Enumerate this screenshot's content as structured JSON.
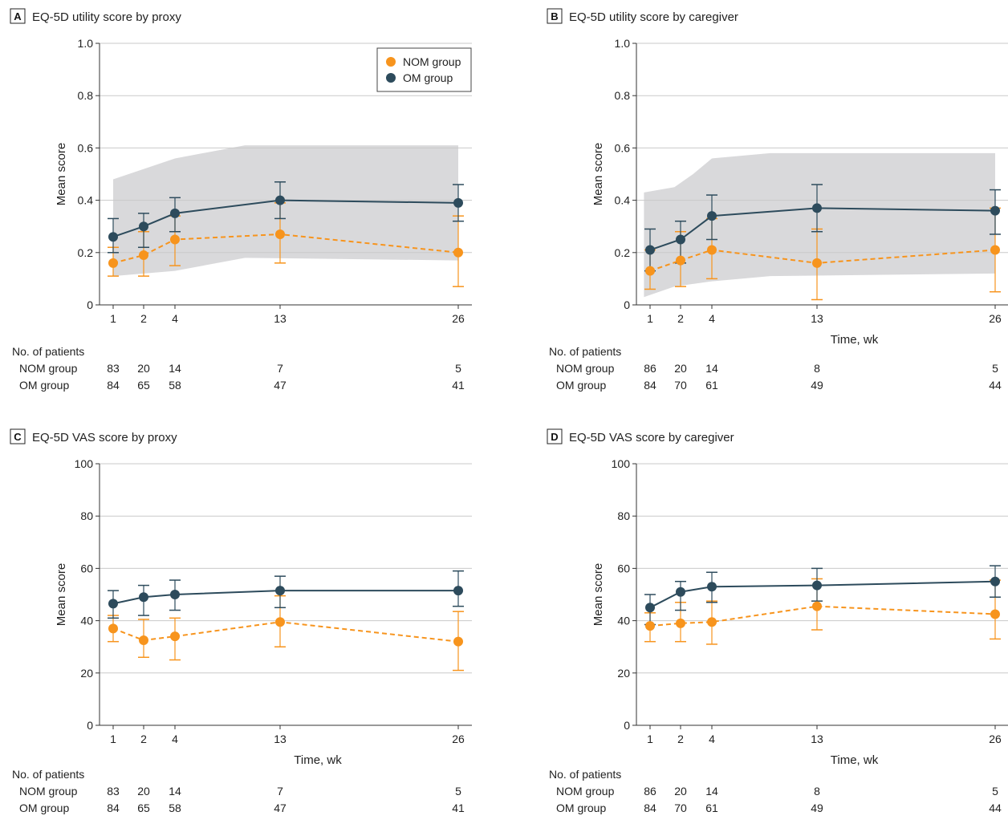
{
  "colors": {
    "nom": "#F7941D",
    "om": "#2D4B5C",
    "band": "#D9D9DB",
    "grid": "#C9C9C9",
    "axis": "#333333"
  },
  "number_of_patients_label": "No. of patients",
  "legend": {
    "nom_label": "NOM group",
    "om_label": "OM group"
  },
  "chart_data": [
    {
      "id": "A",
      "type": "line",
      "panel_letter": "A",
      "title": "EQ-5D utility score by proxy",
      "ylabel": "Mean score",
      "xlabel": "",
      "x": [
        1,
        2,
        4,
        13,
        26
      ],
      "xticks": [
        "1",
        "2",
        "4",
        "13",
        "26"
      ],
      "ylim": [
        0,
        1.0
      ],
      "yticks": [
        "0",
        "0.2",
        "0.4",
        "0.6",
        "0.8",
        "1.0"
      ],
      "yticks_values": [
        0,
        0.2,
        0.4,
        0.6,
        0.8,
        1.0
      ],
      "grid": true,
      "legend_position": "top-right",
      "band": {
        "x": [
          1,
          4,
          10,
          26
        ],
        "upper": [
          0.48,
          0.56,
          0.61,
          0.61
        ],
        "lower": [
          0.11,
          0.13,
          0.18,
          0.17
        ]
      },
      "series": [
        {
          "name": "NOM group",
          "key": "nom",
          "style": "dashed",
          "values": [
            0.16,
            0.19,
            0.25,
            0.27,
            0.2
          ],
          "lower": [
            0.11,
            0.11,
            0.15,
            0.16,
            0.07
          ],
          "upper": [
            0.22,
            0.28,
            0.34,
            0.39,
            0.34
          ]
        },
        {
          "name": "OM group",
          "key": "om",
          "style": "solid",
          "values": [
            0.26,
            0.3,
            0.35,
            0.4,
            0.39
          ],
          "lower": [
            0.2,
            0.22,
            0.28,
            0.33,
            0.32
          ],
          "upper": [
            0.33,
            0.35,
            0.41,
            0.47,
            0.46
          ]
        }
      ],
      "patients": {
        "nom_label": "NOM group",
        "om_label": "OM group",
        "nom": [
          "83",
          "20",
          "14",
          "7",
          "5"
        ],
        "om": [
          "84",
          "65",
          "58",
          "47",
          "41"
        ]
      }
    },
    {
      "id": "B",
      "type": "line",
      "panel_letter": "B",
      "title": "EQ-5D utility score by caregiver",
      "ylabel": "Mean score",
      "xlabel": "Time, wk",
      "x": [
        1,
        2,
        4,
        13,
        26
      ],
      "xticks": [
        "1",
        "2",
        "4",
        "13",
        "26"
      ],
      "ylim": [
        0,
        1.0
      ],
      "yticks": [
        "0",
        "0.2",
        "0.4",
        "0.6",
        "0.8",
        "1.0"
      ],
      "yticks_values": [
        0,
        0.2,
        0.4,
        0.6,
        0.8,
        1.0
      ],
      "grid": true,
      "band": {
        "x": [
          0.8,
          1.8,
          2.8,
          4,
          9,
          26
        ],
        "upper": [
          0.43,
          0.45,
          0.5,
          0.56,
          0.58,
          0.58
        ],
        "lower": [
          0.03,
          0.07,
          0.08,
          0.09,
          0.11,
          0.12
        ]
      },
      "series": [
        {
          "name": "NOM group",
          "key": "nom",
          "style": "dashed",
          "values": [
            0.13,
            0.17,
            0.21,
            0.16,
            0.21
          ],
          "lower": [
            0.06,
            0.07,
            0.1,
            0.02,
            0.05
          ],
          "upper": [
            0.21,
            0.28,
            0.33,
            0.29,
            0.37
          ]
        },
        {
          "name": "OM group",
          "key": "om",
          "style": "solid",
          "values": [
            0.21,
            0.25,
            0.34,
            0.37,
            0.36
          ],
          "lower": [
            0.13,
            0.16,
            0.25,
            0.28,
            0.27
          ],
          "upper": [
            0.29,
            0.32,
            0.42,
            0.46,
            0.44
          ]
        }
      ],
      "patients": {
        "nom_label": "NOM group",
        "om_label": "OM group",
        "nom": [
          "86",
          "20",
          "14",
          "8",
          "5"
        ],
        "om": [
          "84",
          "70",
          "61",
          "49",
          "44"
        ]
      }
    },
    {
      "id": "C",
      "type": "line",
      "panel_letter": "C",
      "title": "EQ-5D VAS score by proxy",
      "ylabel": "Mean score",
      "xlabel": "Time, wk",
      "x": [
        1,
        2,
        4,
        13,
        26
      ],
      "xticks": [
        "1",
        "2",
        "4",
        "13",
        "26"
      ],
      "ylim": [
        0,
        100
      ],
      "yticks": [
        "0",
        "20",
        "40",
        "60",
        "80",
        "100"
      ],
      "yticks_values": [
        0,
        20,
        40,
        60,
        80,
        100
      ],
      "grid": true,
      "series": [
        {
          "name": "NOM group",
          "key": "nom",
          "style": "dashed",
          "values": [
            37,
            32.5,
            34,
            39.5,
            32
          ],
          "lower": [
            32,
            26,
            25,
            30,
            21
          ],
          "upper": [
            42,
            40.5,
            41,
            49.5,
            43.5
          ]
        },
        {
          "name": "OM group",
          "key": "om",
          "style": "solid",
          "values": [
            46.5,
            49,
            50,
            51.5,
            51.5
          ],
          "lower": [
            41,
            42,
            44,
            45,
            45.5
          ],
          "upper": [
            51.5,
            53.5,
            55.5,
            57,
            59
          ]
        }
      ],
      "patients": {
        "nom_label": "NOM group",
        "om_label": "OM group",
        "nom": [
          "83",
          "20",
          "14",
          "7",
          "5"
        ],
        "om": [
          "84",
          "65",
          "58",
          "47",
          "41"
        ]
      }
    },
    {
      "id": "D",
      "type": "line",
      "panel_letter": "D",
      "title": "EQ-5D VAS score by caregiver",
      "ylabel": "Mean score",
      "xlabel": "Time, wk",
      "x": [
        1,
        2,
        4,
        13,
        26
      ],
      "xticks": [
        "1",
        "2",
        "4",
        "13",
        "26"
      ],
      "ylim": [
        0,
        100
      ],
      "yticks": [
        "0",
        "20",
        "40",
        "60",
        "80",
        "100"
      ],
      "yticks_values": [
        0,
        20,
        40,
        60,
        80,
        100
      ],
      "grid": true,
      "series": [
        {
          "name": "NOM group",
          "key": "nom",
          "style": "dashed",
          "values": [
            38,
            39,
            39.5,
            45.5,
            42.5
          ],
          "lower": [
            32,
            32,
            31,
            36.5,
            33
          ],
          "upper": [
            43,
            47,
            47.5,
            56,
            55.5
          ]
        },
        {
          "name": "OM group",
          "key": "om",
          "style": "solid",
          "values": [
            45,
            51,
            53,
            53.5,
            55
          ],
          "lower": [
            38.5,
            44,
            47,
            47.5,
            49
          ],
          "upper": [
            50,
            55,
            58.5,
            60,
            61
          ]
        }
      ],
      "patients": {
        "nom_label": "NOM group",
        "om_label": "OM group",
        "nom": [
          "86",
          "20",
          "14",
          "8",
          "5"
        ],
        "om": [
          "84",
          "70",
          "61",
          "49",
          "44"
        ]
      }
    }
  ]
}
